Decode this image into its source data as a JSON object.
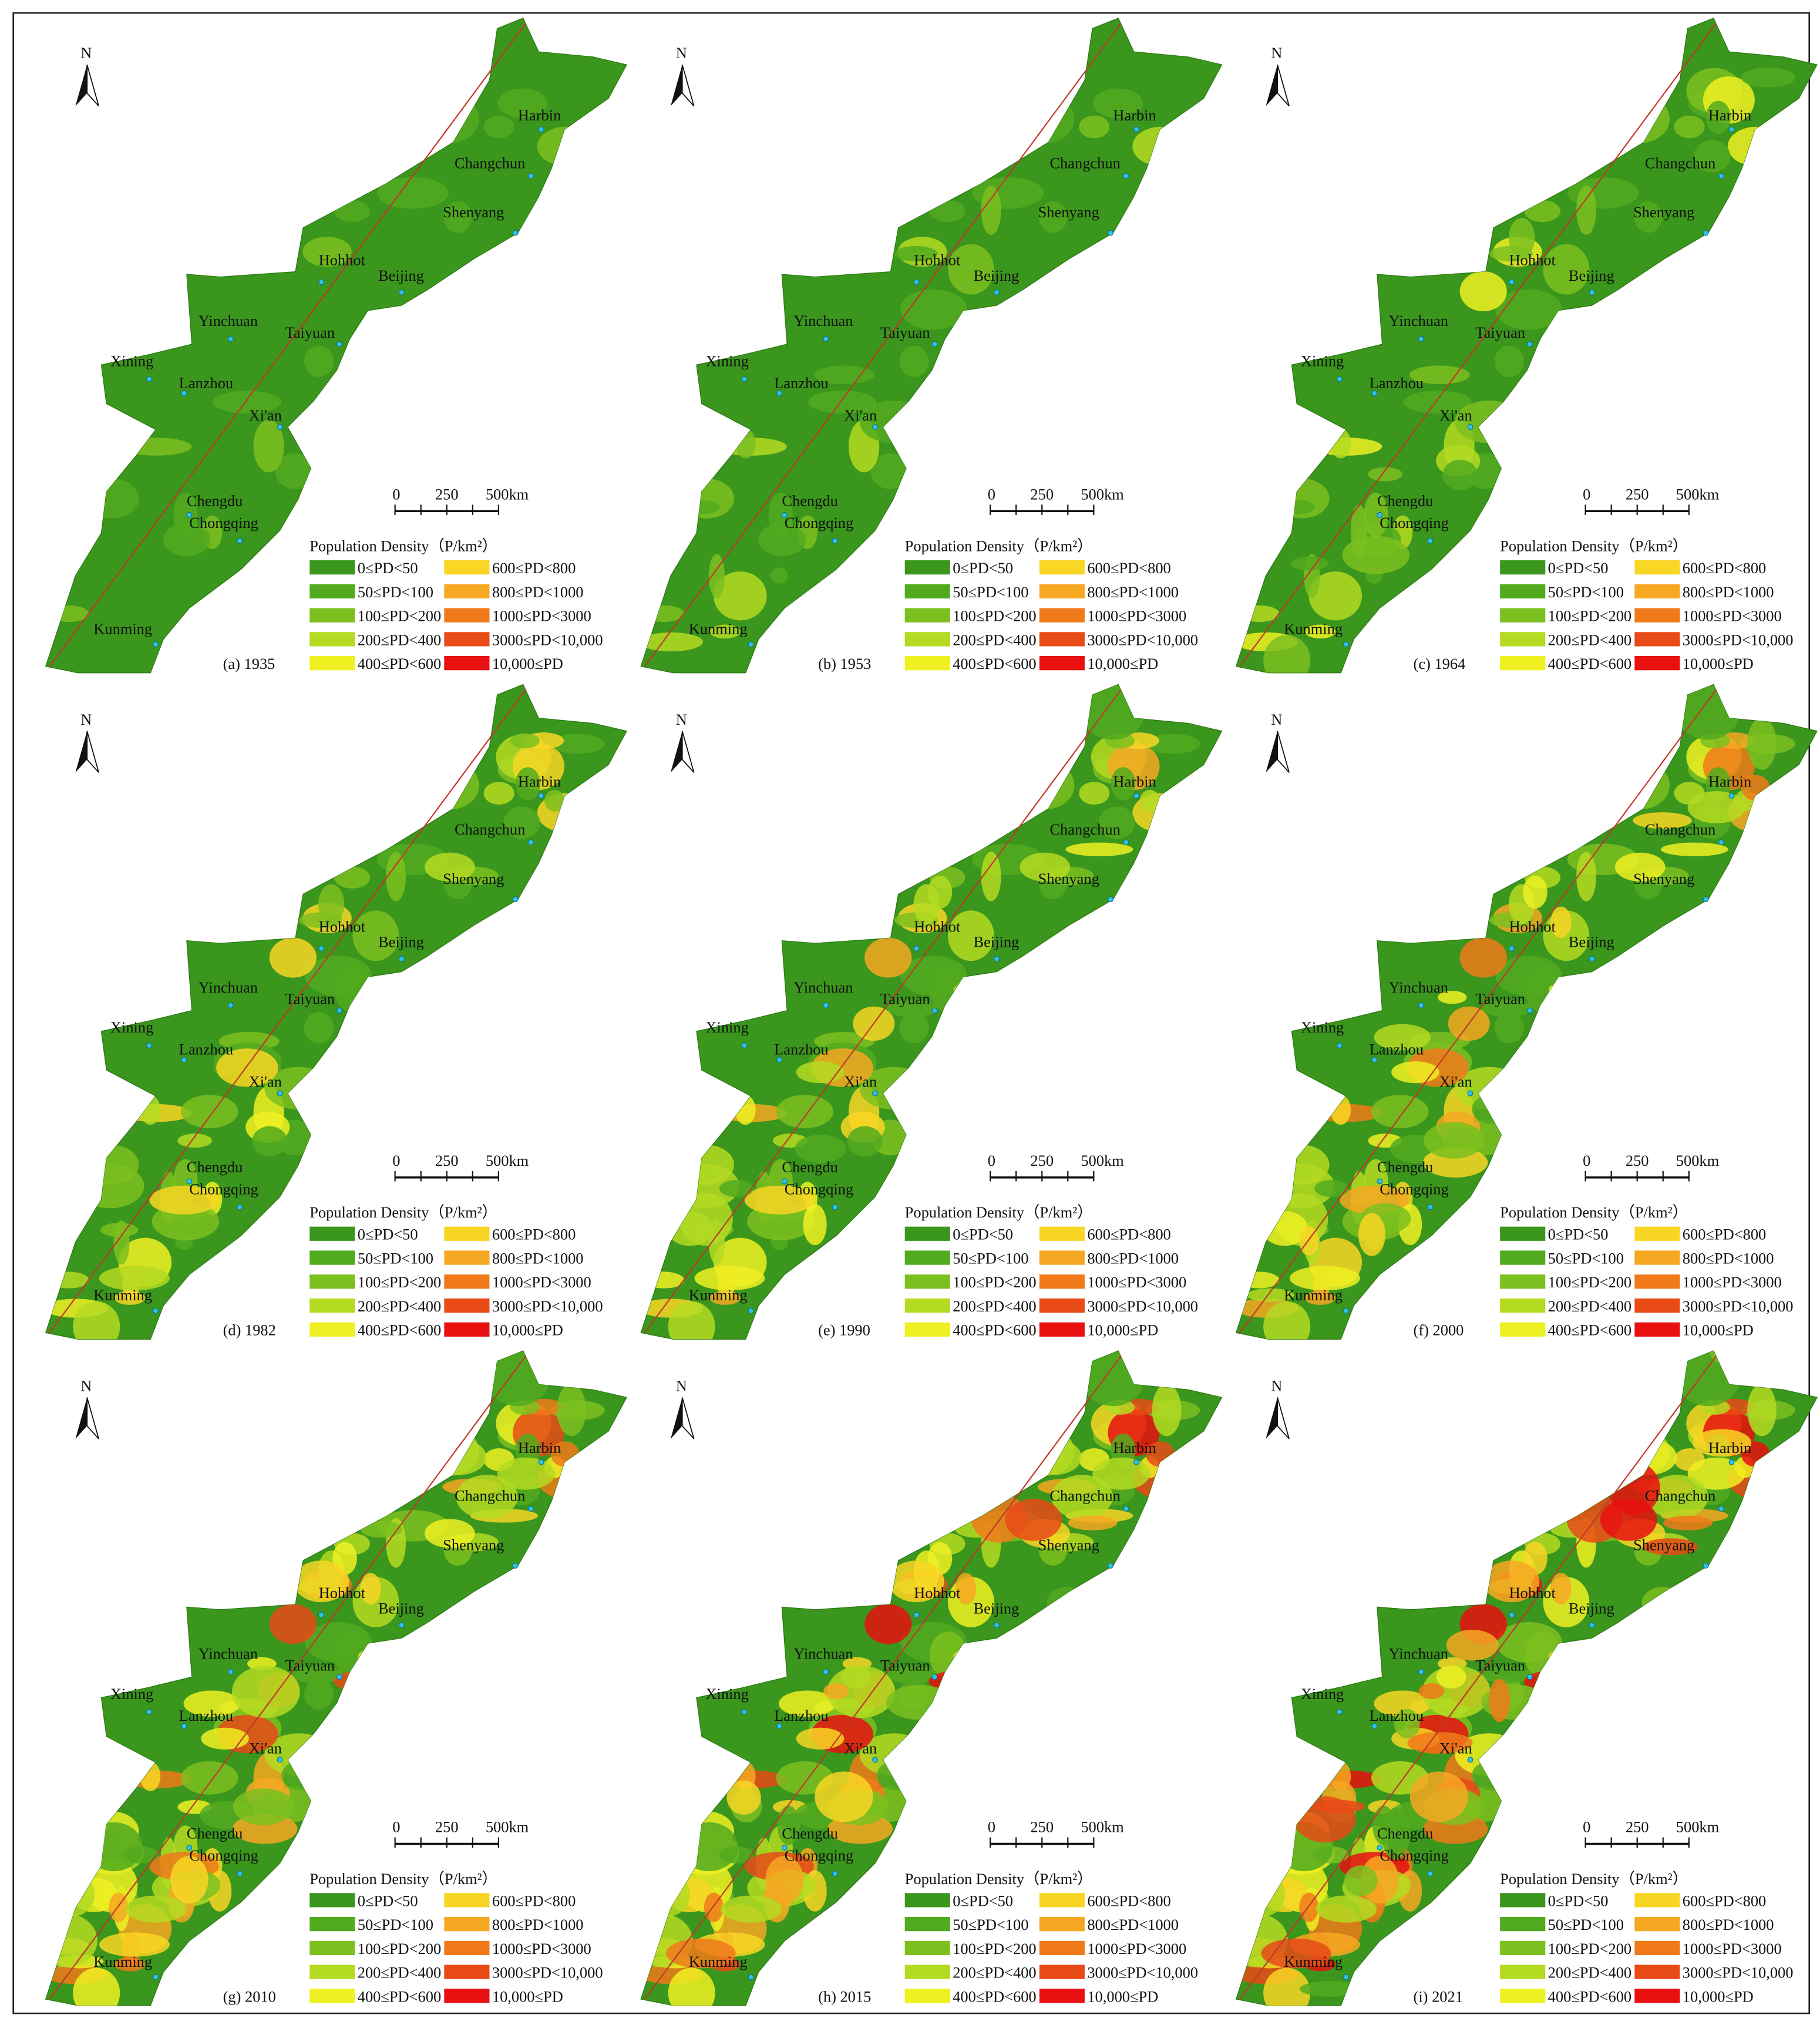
{
  "panels": [
    {
      "label": "(a) 1935"
    },
    {
      "label": "(b) 1953"
    },
    {
      "label": "(c) 1964"
    },
    {
      "label": "(d) 1982"
    },
    {
      "label": "(e) 1990"
    },
    {
      "label": "(f) 2000"
    },
    {
      "label": "(g) 2010"
    },
    {
      "label": "(h) 2015"
    },
    {
      "label": "(i) 2021"
    }
  ],
  "north": "N",
  "scale_bar": [
    "0",
    "250",
    "500km"
  ],
  "cities": [
    "Harbin",
    "Changchun",
    "Shenyang",
    "Hohhot",
    "Beijing",
    "Yinchuan",
    "Taiyuan",
    "Xining",
    "Lanzhou",
    "Xi'an",
    "Chengdu",
    "Chongqing",
    "Kunming"
  ],
  "legend": {
    "title": "Population Density（P/km²）",
    "items": [
      {
        "label": "0≤PD<50",
        "color": "#3a961c"
      },
      {
        "label": "50≤PD<100",
        "color": "#52aa1e"
      },
      {
        "label": "100≤PD<200",
        "color": "#7cc020"
      },
      {
        "label": "200≤PD<400",
        "color": "#b4da22"
      },
      {
        "label": "400≤PD<600",
        "color": "#eef022"
      },
      {
        "label": "600≤PD<800",
        "color": "#f8d624"
      },
      {
        "label": "800≤PD<1000",
        "color": "#f6a822"
      },
      {
        "label": "1000≤PD<3000",
        "color": "#f07a1a"
      },
      {
        "label": "3000≤PD<10,000",
        "color": "#e84a18"
      },
      {
        "label": "10,000≤PD",
        "color": "#e81010"
      }
    ]
  }
}
